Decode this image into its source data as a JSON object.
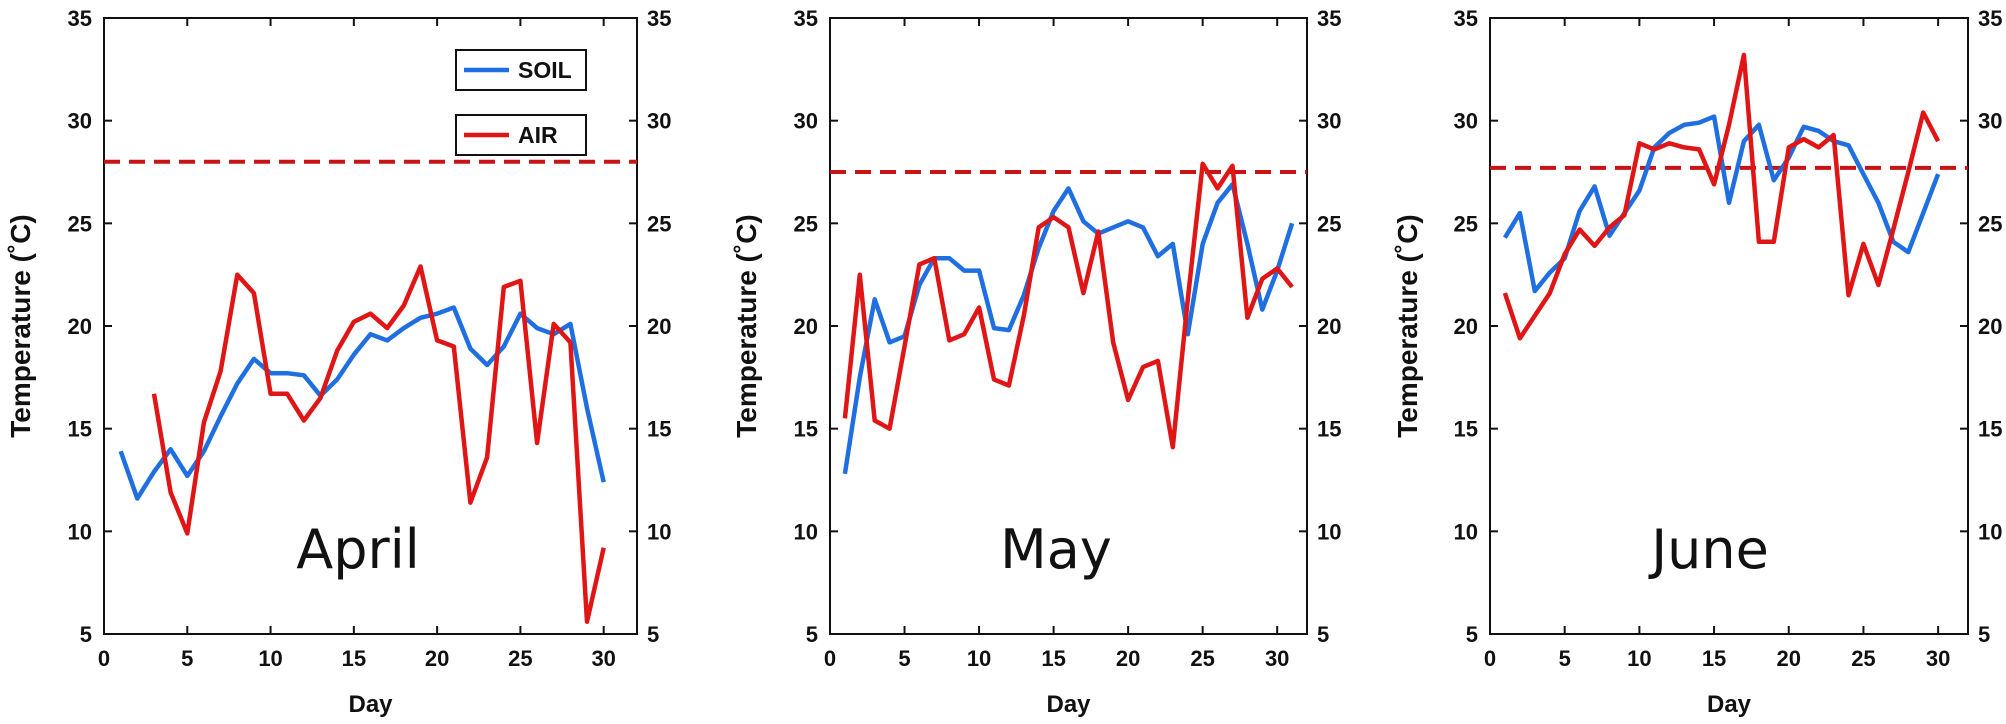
{
  "colors": {
    "soil": "#1f6fe0",
    "air": "#e01515",
    "threshold": "#c81414"
  },
  "chart_data": [
    {
      "type": "line",
      "month_label": "April",
      "xlabel": "Day",
      "ylabel": "Temperature (˚C)",
      "xlim": [
        0,
        32
      ],
      "ylim": [
        5,
        35
      ],
      "xticks": [
        0,
        5,
        10,
        15,
        20,
        25,
        30
      ],
      "yticks": [
        5,
        10,
        15,
        20,
        25,
        30,
        35
      ],
      "right_axis_ticks": true,
      "threshold": 28.0,
      "legend": {
        "show": true,
        "placement": "top-right",
        "entries": [
          "SOIL",
          "AIR"
        ]
      },
      "series": [
        {
          "name": "SOIL",
          "color_key": "soil",
          "x": [
            1,
            2,
            3,
            4,
            5,
            6,
            7,
            8,
            9,
            10,
            11,
            12,
            13,
            14,
            15,
            16,
            17,
            18,
            19,
            20,
            21,
            22,
            23,
            24,
            25,
            26,
            27,
            28,
            29,
            30
          ],
          "y": [
            13.9,
            11.6,
            12.9,
            14.0,
            12.7,
            13.9,
            15.6,
            17.2,
            18.4,
            17.7,
            17.7,
            17.6,
            16.6,
            17.4,
            18.6,
            19.6,
            19.3,
            19.9,
            20.4,
            20.6,
            20.9,
            18.9,
            18.1,
            19.0,
            20.6,
            19.9,
            19.6,
            20.1,
            16.0,
            12.4
          ]
        },
        {
          "name": "AIR",
          "color_key": "air",
          "x": [
            3,
            4,
            5,
            6,
            7,
            8,
            9,
            10,
            11,
            12,
            13,
            14,
            15,
            16,
            17,
            18,
            19,
            20,
            21,
            22,
            23,
            24,
            25,
            26,
            27,
            28,
            29,
            30
          ],
          "y": [
            16.7,
            11.9,
            9.9,
            15.3,
            17.8,
            22.5,
            21.6,
            16.7,
            16.7,
            15.4,
            16.5,
            18.8,
            20.2,
            20.6,
            19.9,
            21.0,
            22.9,
            19.3,
            19.0,
            11.4,
            13.6,
            21.9,
            22.2,
            14.3,
            20.1,
            19.2,
            5.6,
            9.2
          ]
        }
      ]
    },
    {
      "type": "line",
      "month_label": "May",
      "xlabel": "Day",
      "ylabel": "Temperature (˚C)",
      "xlim": [
        0,
        32
      ],
      "ylim": [
        5,
        35
      ],
      "xticks": [
        0,
        5,
        10,
        15,
        20,
        25,
        30
      ],
      "yticks": [
        5,
        10,
        15,
        20,
        25,
        30,
        35
      ],
      "right_axis_ticks": true,
      "threshold": 27.5,
      "legend": {
        "show": false
      },
      "series": [
        {
          "name": "SOIL",
          "color_key": "soil",
          "x": [
            1,
            2,
            3,
            4,
            5,
            6,
            7,
            8,
            9,
            10,
            11,
            12,
            13,
            14,
            15,
            16,
            17,
            18,
            19,
            20,
            21,
            22,
            23,
            24,
            25,
            26,
            27,
            28,
            29,
            30,
            31
          ],
          "y": [
            12.8,
            17.5,
            21.3,
            19.2,
            19.5,
            22.0,
            23.3,
            23.3,
            22.7,
            22.7,
            19.9,
            19.8,
            21.5,
            23.8,
            25.6,
            26.7,
            25.1,
            24.5,
            24.8,
            25.1,
            24.8,
            23.4,
            24.0,
            19.6,
            24.0,
            26.0,
            26.9,
            24.0,
            20.8,
            22.7,
            25.0
          ]
        },
        {
          "name": "AIR",
          "color_key": "air",
          "x": [
            1,
            2,
            3,
            4,
            5,
            6,
            7,
            8,
            9,
            10,
            11,
            12,
            13,
            14,
            15,
            16,
            17,
            18,
            19,
            20,
            21,
            22,
            23,
            24,
            25,
            26,
            27,
            28,
            29,
            30,
            31
          ],
          "y": [
            15.5,
            22.5,
            15.4,
            15.0,
            19.0,
            23.0,
            23.3,
            19.3,
            19.6,
            20.9,
            17.4,
            17.1,
            20.5,
            24.8,
            25.3,
            24.8,
            21.6,
            24.6,
            19.2,
            16.4,
            18.0,
            18.3,
            14.1,
            21.3,
            27.9,
            26.7,
            27.8,
            20.4,
            22.3,
            22.8,
            21.9
          ]
        }
      ]
    },
    {
      "type": "line",
      "month_label": "June",
      "xlabel": "Day",
      "ylabel": "Temperature (˚C)",
      "xlim": [
        0,
        32
      ],
      "ylim": [
        5,
        35
      ],
      "xticks": [
        0,
        5,
        10,
        15,
        20,
        25,
        30
      ],
      "yticks": [
        5,
        10,
        15,
        20,
        25,
        30,
        35
      ],
      "right_axis_ticks": true,
      "threshold": 27.7,
      "legend": {
        "show": false
      },
      "series": [
        {
          "name": "SOIL",
          "color_key": "soil",
          "x": [
            1,
            2,
            3,
            4,
            5,
            6,
            7,
            8,
            9,
            10,
            11,
            12,
            13,
            14,
            15,
            16,
            17,
            18,
            19,
            20,
            21,
            22,
            23,
            24,
            25,
            26,
            27,
            28,
            29,
            30
          ],
          "y": [
            24.3,
            25.5,
            21.7,
            22.6,
            23.3,
            25.6,
            26.8,
            24.4,
            25.5,
            26.6,
            28.7,
            29.4,
            29.8,
            29.9,
            30.2,
            26.0,
            29.0,
            29.8,
            27.1,
            28.2,
            29.7,
            29.5,
            29.0,
            28.8,
            27.4,
            26.0,
            24.1,
            23.6,
            25.5,
            27.4
          ]
        },
        {
          "name": "AIR",
          "color_key": "air",
          "x": [
            1,
            2,
            3,
            4,
            5,
            6,
            7,
            8,
            9,
            10,
            11,
            12,
            13,
            14,
            15,
            16,
            17,
            18,
            19,
            20,
            21,
            22,
            23,
            24,
            25,
            26,
            27,
            28,
            29,
            30
          ],
          "y": [
            21.6,
            19.4,
            20.5,
            21.6,
            23.5,
            24.7,
            23.9,
            24.8,
            25.4,
            28.9,
            28.6,
            28.9,
            28.7,
            28.6,
            26.9,
            29.8,
            33.2,
            24.1,
            24.1,
            28.7,
            29.1,
            28.7,
            29.3,
            21.5,
            24.0,
            22.0,
            24.7,
            27.5,
            30.4,
            29.0
          ]
        }
      ]
    }
  ]
}
